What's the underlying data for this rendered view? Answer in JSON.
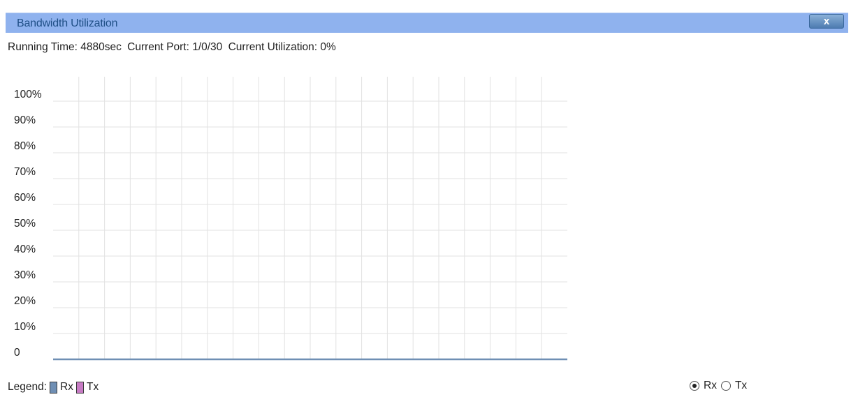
{
  "window": {
    "title": "Bandwidth Utilization",
    "close_label": "x"
  },
  "status": {
    "running_time": "Running Time: 4880sec",
    "current_port": "Current Port: 1/0/30",
    "current_utilization": "Current Utilization: 0%"
  },
  "chart_data": {
    "type": "line",
    "y_tick_labels": [
      "0",
      "10%",
      "20%",
      "30%",
      "40%",
      "50%",
      "60%",
      "70%",
      "80%",
      "90%",
      "100%"
    ],
    "ylim": [
      0,
      100
    ],
    "grid": true,
    "series": [
      {
        "name": "Rx",
        "color": "#6f8fb4",
        "values": [
          0,
          0,
          0,
          0,
          0,
          0,
          0,
          0,
          0,
          0,
          0,
          0,
          0,
          0,
          0,
          0,
          0,
          0,
          0,
          0,
          0
        ]
      }
    ]
  },
  "legend": {
    "label": "Legend:",
    "items": [
      {
        "name": "Rx",
        "color": "#6f8fb4"
      },
      {
        "name": "Tx",
        "color": "#c77bc4"
      }
    ]
  },
  "selector": {
    "options": [
      {
        "label": "Rx",
        "checked": true
      },
      {
        "label": "Tx",
        "checked": false
      }
    ]
  }
}
